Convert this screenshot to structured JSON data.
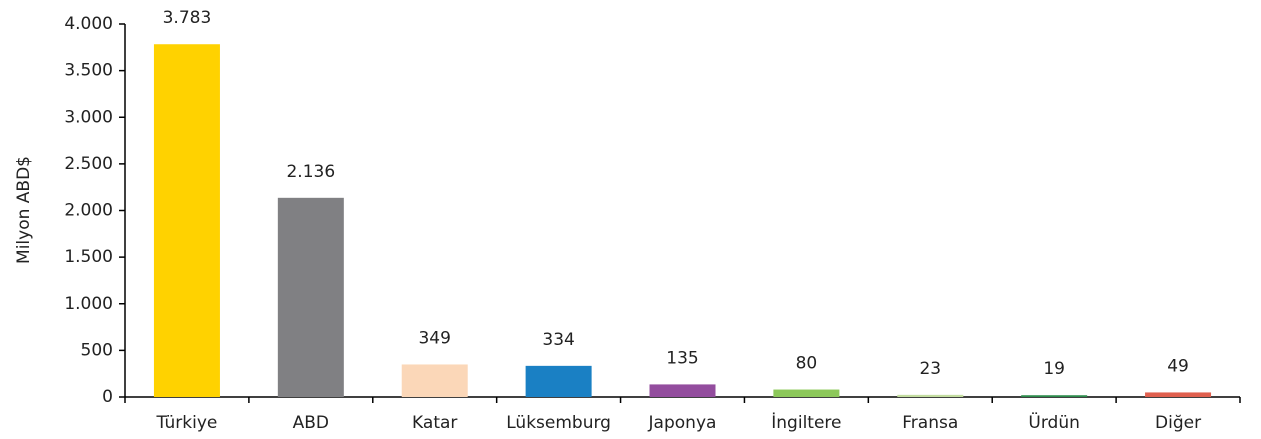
{
  "chart_data": {
    "type": "bar",
    "y_label": "Milyon ABD$",
    "categories": [
      "Türkiye",
      "ABD",
      "Katar",
      "Lüksemburg",
      "Japonya",
      "İngiltere",
      "Fransa",
      "Ürdün",
      "Diğer"
    ],
    "values": [
      3783,
      2136,
      349,
      334,
      135,
      80,
      23,
      19,
      49
    ],
    "value_labels": [
      "3.783",
      "2.136",
      "349",
      "334",
      "135",
      "80",
      "23",
      "19",
      "49"
    ],
    "colors": [
      "#ffd200",
      "#808083",
      "#fbd7b8",
      "#1a80c4",
      "#934d9e",
      "#8cc85a",
      "#c3dda0",
      "#2c8c4c",
      "#e0604f"
    ],
    "ylim": [
      0,
      4000
    ],
    "yticks": [
      0,
      500,
      {
        "value": 1000,
        "label": "1.000"
      },
      {
        "value": 1500,
        "label": "1.500"
      },
      {
        "value": 2000,
        "label": "2.000"
      },
      {
        "value": 2500,
        "label": "2.500"
      },
      {
        "value": 3000,
        "label": "3.000"
      },
      {
        "value": 3500,
        "label": "3.500"
      },
      {
        "value": 4000,
        "label": "4.000"
      }
    ],
    "grid": false
  }
}
